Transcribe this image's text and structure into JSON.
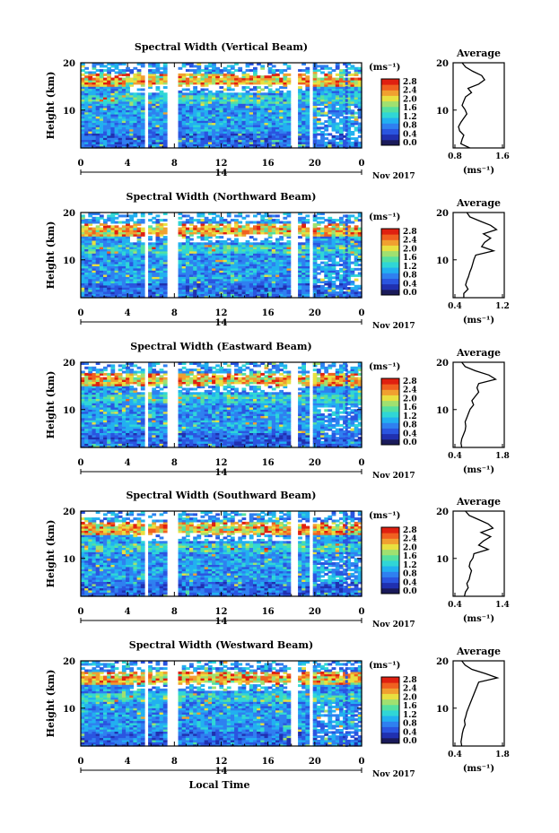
{
  "figure": {
    "date_label": "Nov 2017",
    "day_label": "14",
    "xlabel": "Local Time",
    "ylabel": "Height (km)",
    "unit_label": "(ms⁻¹)",
    "avg_title": "Average",
    "avg_xlabel": "(ms⁻¹)"
  },
  "colors": {
    "colorbar": [
      "#1a1a5a",
      "#2030b0",
      "#2a55e0",
      "#2f80f0",
      "#22b0f0",
      "#30d6d6",
      "#55e0a0",
      "#a0e070",
      "#e8e040",
      "#f0a030",
      "#f06020",
      "#e02010"
    ],
    "background": "#ffffff",
    "line": "#000000"
  },
  "chart_data": [
    {
      "type": "heatmap",
      "title": "Spectral Width (Vertical Beam)",
      "x_ticks": [
        "0",
        "4",
        "8",
        "12",
        "16",
        "20",
        "0"
      ],
      "y_ticks": [
        "20",
        "10"
      ],
      "xlim": [
        0,
        24
      ],
      "ylim": [
        2,
        20
      ],
      "colorbar_ticks": [
        "2.8",
        "2.4",
        "2.0",
        "1.6",
        "1.2",
        "0.8",
        "0.4",
        "0.0"
      ],
      "data_gaps_hours": [
        [
          5.5,
          5.8
        ],
        [
          7.3,
          8.3
        ],
        [
          18.0,
          18.5
        ],
        [
          19.6,
          19.9
        ]
      ],
      "average_profile": {
        "xticks": [
          "0.8",
          "1.6"
        ],
        "xlim": [
          0.8,
          1.6
        ],
        "yticks": [
          "20",
          "10"
        ],
        "values": [
          1.05,
          0.9,
          0.92,
          0.95,
          0.88,
          0.86,
          0.9,
          0.95,
          1.0,
          0.97,
          0.92,
          0.95,
          0.98,
          1.08,
          1.02,
          1.2,
          1.3,
          1.25,
          1.1,
          0.98,
          0.92
        ]
      }
    },
    {
      "type": "heatmap",
      "title": "Spectral Width (Northward Beam)",
      "x_ticks": [
        "0",
        "4",
        "8",
        "12",
        "16",
        "20",
        "0"
      ],
      "y_ticks": [
        "20",
        "10"
      ],
      "xlim": [
        0,
        24
      ],
      "ylim": [
        2,
        20
      ],
      "colorbar_ticks": [
        "2.8",
        "2.4",
        "2.0",
        "1.6",
        "1.2",
        "0.8",
        "0.4",
        "0.0"
      ],
      "data_gaps_hours": [
        [
          5.5,
          5.8
        ],
        [
          7.3,
          8.3
        ],
        [
          18.0,
          18.5
        ],
        [
          19.6,
          19.9
        ]
      ],
      "average_profile": {
        "xticks": [
          "0.4",
          "1.2"
        ],
        "xlim": [
          0.4,
          1.2
        ],
        "yticks": [
          "20",
          "10"
        ],
        "values": [
          0.55,
          0.55,
          0.62,
          0.58,
          0.6,
          0.63,
          0.65,
          0.68,
          0.7,
          0.72,
          0.75,
          1.05,
          0.85,
          0.9,
          1.0,
          0.88,
          1.1,
          1.0,
          0.82,
          0.65,
          0.6
        ]
      }
    },
    {
      "type": "heatmap",
      "title": "Spectral Width (Eastward Beam)",
      "x_ticks": [
        "0",
        "4",
        "8",
        "12",
        "16",
        "20",
        "0"
      ],
      "y_ticks": [
        "20",
        "10"
      ],
      "xlim": [
        0,
        24
      ],
      "ylim": [
        2,
        20
      ],
      "colorbar_ticks": [
        "2.8",
        "2.4",
        "2.0",
        "1.6",
        "1.2",
        "0.8",
        "0.4",
        "0.0"
      ],
      "data_gaps_hours": [
        [
          5.5,
          5.8
        ],
        [
          7.3,
          8.3
        ],
        [
          18.0,
          18.5
        ],
        [
          19.6,
          19.9
        ]
      ],
      "average_profile": {
        "xticks": [
          "0.4",
          "1.8"
        ],
        "xlim": [
          0.4,
          1.8
        ],
        "yticks": [
          "20",
          "10"
        ],
        "values": [
          0.6,
          0.58,
          0.6,
          0.65,
          0.7,
          0.72,
          0.7,
          0.75,
          0.8,
          0.85,
          0.95,
          0.9,
          1.0,
          1.1,
          1.05,
          1.1,
          1.6,
          1.4,
          1.0,
          0.7,
          0.6
        ]
      }
    },
    {
      "type": "heatmap",
      "title": "Spectral Width (Southward Beam)",
      "x_ticks": [
        "0",
        "4",
        "8",
        "12",
        "16",
        "20",
        "0"
      ],
      "y_ticks": [
        "20",
        "10"
      ],
      "xlim": [
        0,
        24
      ],
      "ylim": [
        2,
        20
      ],
      "colorbar_ticks": [
        "2.8",
        "2.4",
        "2.0",
        "1.6",
        "1.2",
        "0.8",
        "0.4",
        "0.0"
      ],
      "data_gaps_hours": [
        [
          5.5,
          5.8
        ],
        [
          7.3,
          8.3
        ],
        [
          18.0,
          18.5
        ],
        [
          19.6,
          19.9
        ]
      ],
      "average_profile": {
        "xticks": [
          "0.4",
          "1.4"
        ],
        "xlim": [
          0.4,
          1.4
        ],
        "yticks": [
          "20",
          "10"
        ],
        "values": [
          0.6,
          0.62,
          0.68,
          0.65,
          0.7,
          0.72,
          0.75,
          0.7,
          0.72,
          0.78,
          0.8,
          1.1,
          0.9,
          1.0,
          1.15,
          0.95,
          1.2,
          1.1,
          0.9,
          0.7,
          0.62
        ]
      }
    },
    {
      "type": "heatmap",
      "title": "Spectral Width (Westward Beam)",
      "x_ticks": [
        "0",
        "4",
        "8",
        "12",
        "16",
        "20",
        "0"
      ],
      "y_ticks": [
        "20",
        "10"
      ],
      "xlim": [
        0,
        24
      ],
      "ylim": [
        2,
        20
      ],
      "colorbar_ticks": [
        "2.8",
        "2.4",
        "2.0",
        "1.6",
        "1.2",
        "0.8",
        "0.4",
        "0.0"
      ],
      "data_gaps_hours": [
        [
          5.5,
          5.8
        ],
        [
          7.3,
          8.3
        ],
        [
          18.0,
          18.5
        ],
        [
          19.6,
          19.9
        ]
      ],
      "average_profile": {
        "xticks": [
          "0.4",
          "1.8"
        ],
        "xlim": [
          0.4,
          1.8
        ],
        "yticks": [
          "20",
          "10"
        ],
        "values": [
          0.6,
          0.58,
          0.6,
          0.62,
          0.65,
          0.7,
          0.68,
          0.72,
          0.75,
          0.8,
          0.85,
          0.9,
          0.95,
          1.0,
          1.05,
          1.1,
          1.65,
          1.3,
          0.9,
          0.7,
          0.6
        ]
      }
    }
  ]
}
